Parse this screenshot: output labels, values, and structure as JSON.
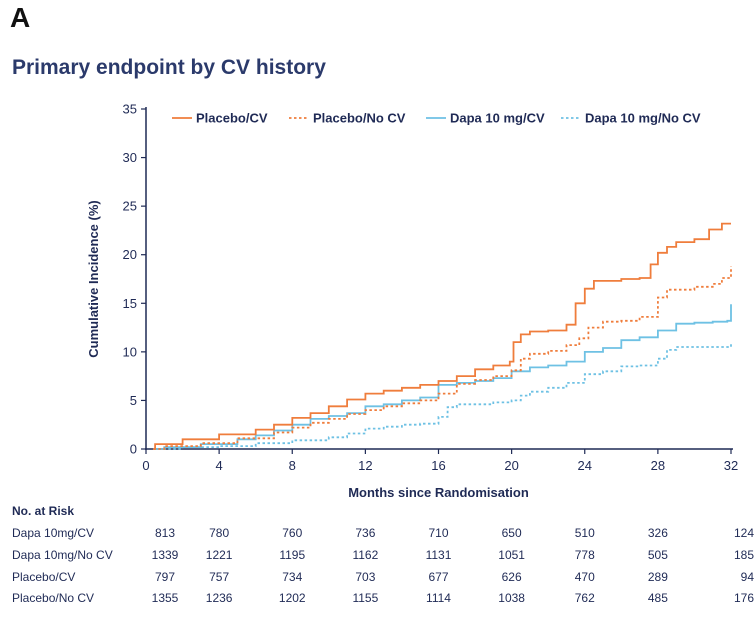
{
  "panel_label": "A",
  "chart_data": {
    "type": "line",
    "title": "Primary endpoint by CV history",
    "xlabel": "Months since Randomisation",
    "ylabel": "Cumulative Incidence (%)",
    "xlim": [
      0,
      32
    ],
    "ylim": [
      0,
      35
    ],
    "x_ticks": [
      0,
      4,
      8,
      12,
      16,
      20,
      24,
      28,
      32
    ],
    "y_ticks": [
      0,
      5,
      10,
      15,
      20,
      25,
      30,
      35
    ],
    "legend_position": "top",
    "series": [
      {
        "name": "Placebo/CV",
        "color": "#ef7d3c",
        "dash": "solid",
        "points": [
          [
            0.4,
            0
          ],
          [
            0.5,
            0.5
          ],
          [
            2,
            1
          ],
          [
            4,
            1.5
          ],
          [
            6,
            2
          ],
          [
            7,
            2.5
          ],
          [
            8,
            3.2
          ],
          [
            9,
            3.7
          ],
          [
            10,
            4.4
          ],
          [
            11,
            5.1
          ],
          [
            12,
            5.7
          ],
          [
            13,
            6
          ],
          [
            14,
            6.3
          ],
          [
            15,
            6.6
          ],
          [
            16,
            7
          ],
          [
            17,
            7.5
          ],
          [
            18,
            8.2
          ],
          [
            19,
            8.6
          ],
          [
            19.9,
            9
          ],
          [
            20.1,
            11
          ],
          [
            20.5,
            11.8
          ],
          [
            21,
            12.1
          ],
          [
            22,
            12.2
          ],
          [
            23,
            12.8
          ],
          [
            23.5,
            15
          ],
          [
            24,
            16.5
          ],
          [
            24.5,
            17.3
          ],
          [
            26,
            17.5
          ],
          [
            27,
            17.6
          ],
          [
            27.6,
            19
          ],
          [
            28,
            20.2
          ],
          [
            28.5,
            20.8
          ],
          [
            29,
            21.3
          ],
          [
            30,
            21.6
          ],
          [
            30.8,
            22.6
          ],
          [
            31.5,
            23.2
          ],
          [
            32,
            23.2
          ]
        ]
      },
      {
        "name": "Placebo/No CV",
        "color": "#ef7d3c",
        "dash": "dotted",
        "points": [
          [
            0.4,
            0
          ],
          [
            1,
            0.3
          ],
          [
            3,
            0.6
          ],
          [
            5,
            1.1
          ],
          [
            7,
            1.7
          ],
          [
            8,
            2.2
          ],
          [
            9,
            2.7
          ],
          [
            10,
            3.1
          ],
          [
            11,
            3.6
          ],
          [
            12,
            4
          ],
          [
            13,
            4.4
          ],
          [
            14,
            4.7
          ],
          [
            15,
            5
          ],
          [
            16,
            5.7
          ],
          [
            17,
            6.7
          ],
          [
            18,
            7.1
          ],
          [
            19,
            7.5
          ],
          [
            20,
            8.1
          ],
          [
            20.5,
            9.3
          ],
          [
            21,
            9.8
          ],
          [
            22,
            10.1
          ],
          [
            23,
            10.7
          ],
          [
            23.7,
            11.4
          ],
          [
            24.2,
            12.5
          ],
          [
            25,
            13.1
          ],
          [
            26,
            13.2
          ],
          [
            27,
            13.6
          ],
          [
            28,
            15.6
          ],
          [
            28.5,
            16.4
          ],
          [
            30,
            16.7
          ],
          [
            31,
            17
          ],
          [
            31.5,
            17.6
          ],
          [
            32,
            18.8
          ]
        ]
      },
      {
        "name": "Dapa 10 mg/CV",
        "color": "#6ec1e4",
        "dash": "solid",
        "points": [
          [
            0.4,
            0
          ],
          [
            1,
            0.2
          ],
          [
            3,
            0.5
          ],
          [
            5,
            1
          ],
          [
            6,
            1.4
          ],
          [
            7,
            1.9
          ],
          [
            8,
            2.5
          ],
          [
            9,
            3.1
          ],
          [
            10,
            3.4
          ],
          [
            11,
            3.7
          ],
          [
            12,
            4.4
          ],
          [
            13,
            4.6
          ],
          [
            14,
            5
          ],
          [
            15,
            5.3
          ],
          [
            16,
            6.6
          ],
          [
            17,
            6.8
          ],
          [
            18,
            7
          ],
          [
            19,
            7.3
          ],
          [
            20,
            8
          ],
          [
            21,
            8.4
          ],
          [
            22,
            8.6
          ],
          [
            23,
            9
          ],
          [
            24,
            10
          ],
          [
            25,
            10.4
          ],
          [
            26,
            11.2
          ],
          [
            27,
            11.5
          ],
          [
            28,
            12.2
          ],
          [
            29,
            12.9
          ],
          [
            30,
            13
          ],
          [
            31,
            13.1
          ],
          [
            31.8,
            13.2
          ],
          [
            32,
            14.9
          ]
        ]
      },
      {
        "name": "Dapa 10 mg/No CV",
        "color": "#6ec1e4",
        "dash": "dotted",
        "points": [
          [
            0.4,
            0
          ],
          [
            2,
            0.2
          ],
          [
            4,
            0.3
          ],
          [
            6,
            0.6
          ],
          [
            8,
            0.9
          ],
          [
            10,
            1.2
          ],
          [
            11,
            1.6
          ],
          [
            12,
            2.1
          ],
          [
            13,
            2.3
          ],
          [
            14,
            2.5
          ],
          [
            15,
            2.6
          ],
          [
            16,
            3.3
          ],
          [
            16.5,
            4.3
          ],
          [
            17,
            4.6
          ],
          [
            19,
            4.8
          ],
          [
            20,
            5
          ],
          [
            20.5,
            5.5
          ],
          [
            21,
            5.9
          ],
          [
            22,
            6.3
          ],
          [
            23,
            6.8
          ],
          [
            24,
            7.7
          ],
          [
            25,
            8
          ],
          [
            26,
            8.5
          ],
          [
            27,
            8.6
          ],
          [
            28,
            9.3
          ],
          [
            28.5,
            10.2
          ],
          [
            29,
            10.5
          ],
          [
            31.8,
            10.5
          ],
          [
            32,
            10.9
          ]
        ]
      }
    ]
  },
  "risk_table": {
    "title": "No. at Risk",
    "rows": [
      {
        "label": "Dapa 10mg/CV",
        "values": [
          "813",
          "780",
          "760",
          "736",
          "710",
          "650",
          "510",
          "326",
          "124"
        ]
      },
      {
        "label": "Dapa 10mg/No CV",
        "values": [
          "1339",
          "1221",
          "1195",
          "1162",
          "1131",
          "1051",
          "778",
          "505",
          "185"
        ]
      },
      {
        "label": "Placebo/CV",
        "values": [
          "797",
          "757",
          "734",
          "703",
          "677",
          "626",
          "470",
          "289",
          "94"
        ]
      },
      {
        "label": "Placebo/No CV",
        "values": [
          "1355",
          "1236",
          "1202",
          "1155",
          "1114",
          "1038",
          "762",
          "485",
          "176"
        ]
      }
    ]
  }
}
